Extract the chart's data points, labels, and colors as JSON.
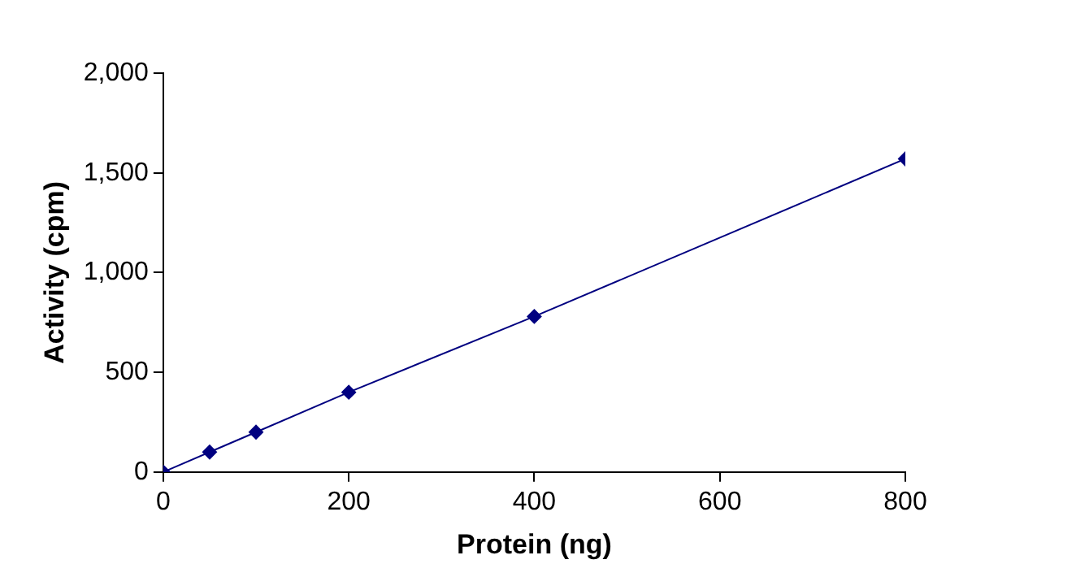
{
  "chart_data": {
    "type": "line",
    "xlabel": "Protein (ng)",
    "ylabel": "Activity (cpm)",
    "x": [
      0,
      50,
      100,
      200,
      400,
      800
    ],
    "series": [
      {
        "color": "#000080",
        "values": [
          0,
          100,
          200,
          400,
          780,
          1570
        ]
      }
    ],
    "xlim": [
      0,
      800
    ],
    "xticks": [
      0,
      200,
      400,
      600,
      800
    ],
    "ylim": [
      0,
      2000
    ],
    "yticks": [
      0,
      {
        "value": 500,
        "label": "500"
      },
      {
        "value": 1000,
        "label": "1,000"
      },
      {
        "value": 1500,
        "label": "1,500"
      },
      {
        "value": 2000,
        "label": "2,000"
      }
    ],
    "grid": false,
    "legend": false,
    "marker": "diamond",
    "line_style": "solid"
  }
}
